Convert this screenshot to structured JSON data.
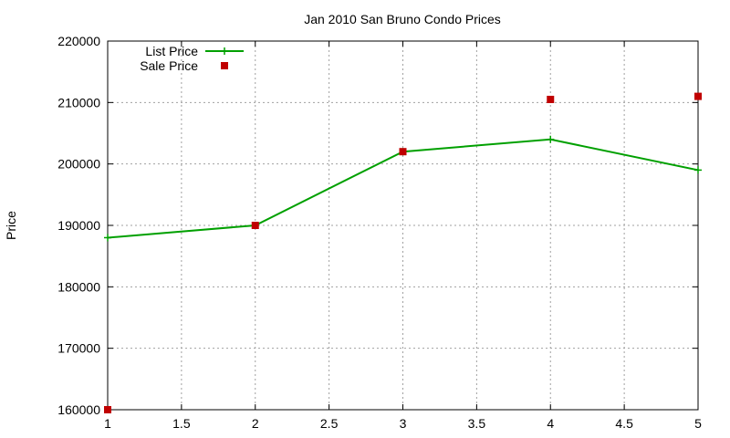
{
  "chart_data": {
    "type": "line",
    "title": "Jan 2010 San Bruno Condo Prices",
    "xlabel": "",
    "ylabel": "Price",
    "xlim": [
      1,
      5
    ],
    "ylim": [
      160000,
      220000
    ],
    "xticks": [
      "1",
      "1.5",
      "2",
      "2.5",
      "3",
      "3.5",
      "4",
      "4.5",
      "5"
    ],
    "yticks": [
      "160000",
      "170000",
      "180000",
      "190000",
      "200000",
      "210000",
      "220000"
    ],
    "grid": true,
    "legend_position": "top-left",
    "series": [
      {
        "name": "List Price",
        "style": "line-with-plus-markers",
        "color": "#00a000",
        "x": [
          1,
          2,
          3,
          4,
          5
        ],
        "y": [
          188000,
          190000,
          202000,
          204000,
          199000
        ]
      },
      {
        "name": "Sale Price",
        "style": "square-markers",
        "color": "#c00000",
        "x": [
          1,
          2,
          3,
          4,
          5
        ],
        "y": [
          160000,
          190000,
          202000,
          210500,
          211000
        ]
      }
    ]
  }
}
